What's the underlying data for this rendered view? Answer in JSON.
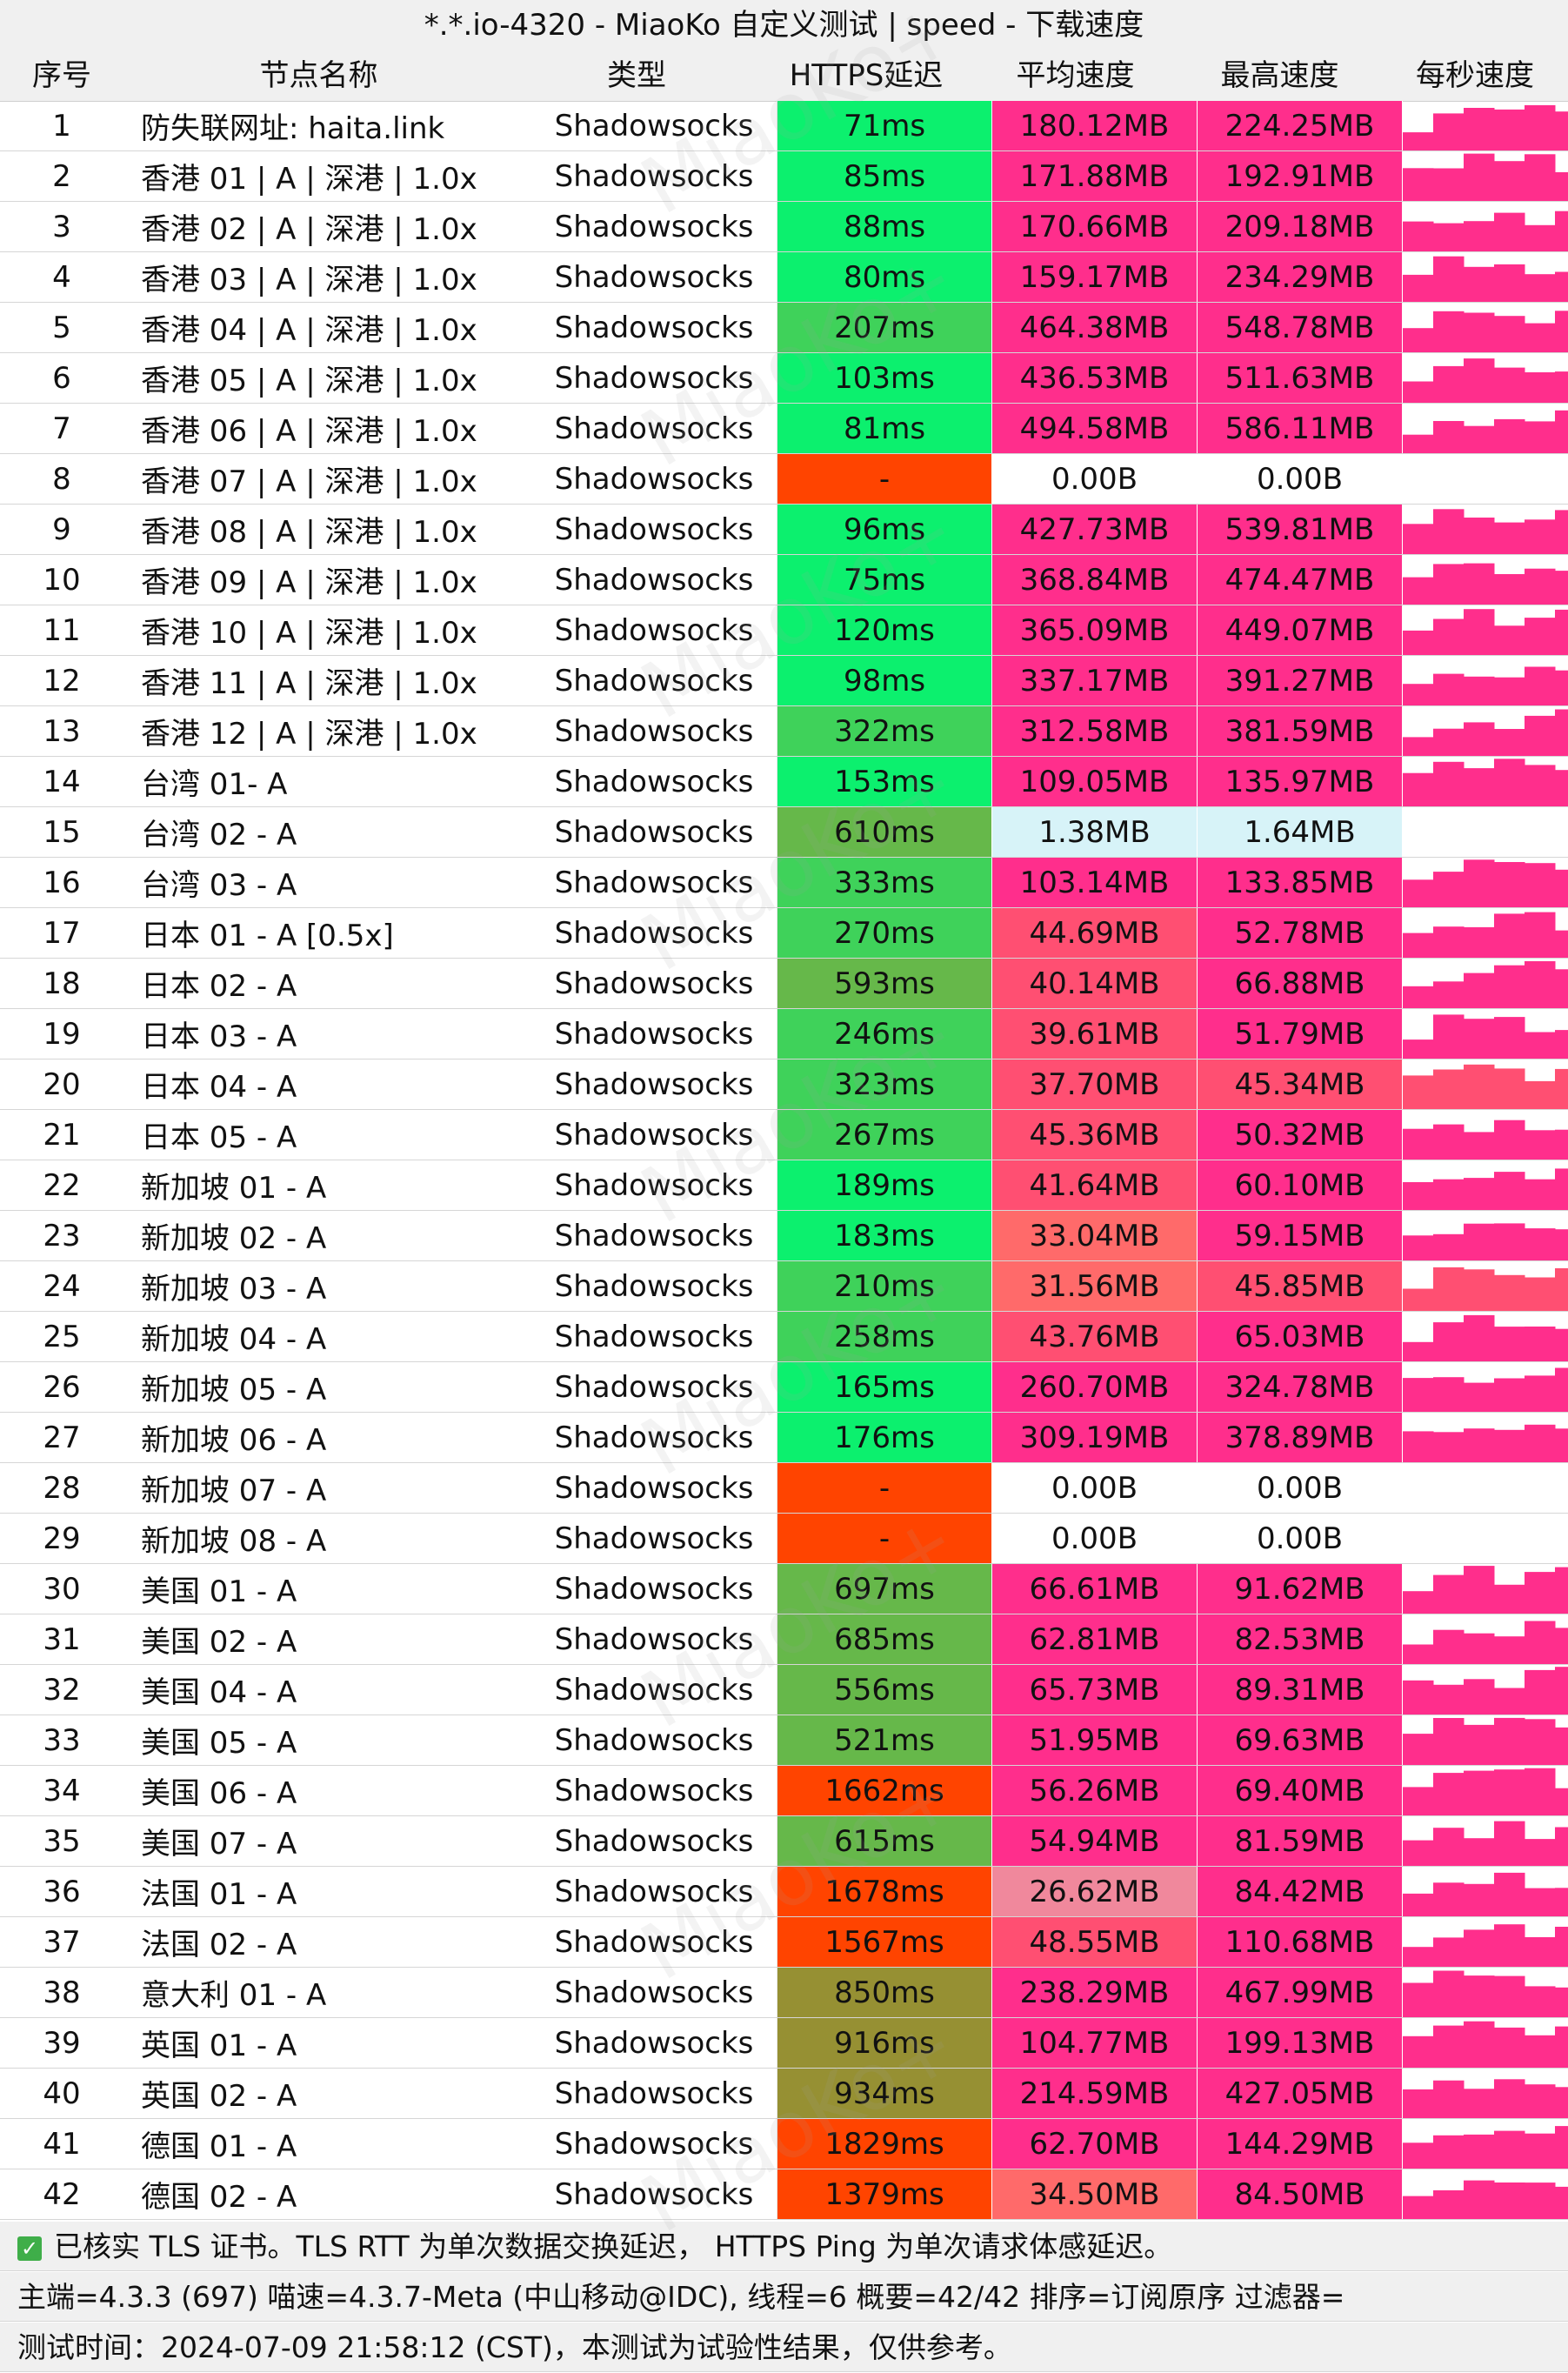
{
  "title": "*.*.io-4320 - MiaoKo 自定义测试 | speed - 下载速度",
  "watermark": "MiaoKo+",
  "columns": {
    "idx": "序号",
    "name": "节点名称",
    "type": "类型",
    "latency": "HTTPS延迟",
    "avg_speed": "平均速度",
    "max_speed": "最高速度",
    "per_second": "每秒速度"
  },
  "colors": {
    "latency_good": "#0cf06e",
    "latency_mid": "#3fd25a",
    "latency_slow": "#66b84a",
    "latency_olive": "#969033",
    "latency_fail": "#ff4400",
    "speed_high": "#ff2e8c",
    "speed_mid": "#ff4f72",
    "speed_low": "#ff6a6a",
    "speed_pale": "#f0889c",
    "speed_tiny": "#d7f3f8",
    "header_bg": "#f0f0f0"
  },
  "rows": [
    {
      "idx": "1",
      "name": "防失联网址: haita.link",
      "type": "Shadowsocks",
      "latency": "71ms",
      "avg": "180.12MB",
      "max": "224.25MB"
    },
    {
      "idx": "2",
      "name": "香港 01 | A | 深港 | 1.0x",
      "type": "Shadowsocks",
      "latency": "85ms",
      "avg": "171.88MB",
      "max": "192.91MB"
    },
    {
      "idx": "3",
      "name": "香港 02 | A | 深港 | 1.0x",
      "type": "Shadowsocks",
      "latency": "88ms",
      "avg": "170.66MB",
      "max": "209.18MB"
    },
    {
      "idx": "4",
      "name": "香港 03 | A | 深港 | 1.0x",
      "type": "Shadowsocks",
      "latency": "80ms",
      "avg": "159.17MB",
      "max": "234.29MB"
    },
    {
      "idx": "5",
      "name": "香港 04 | A | 深港 | 1.0x",
      "type": "Shadowsocks",
      "latency": "207ms",
      "avg": "464.38MB",
      "max": "548.78MB"
    },
    {
      "idx": "6",
      "name": "香港 05 | A | 深港 | 1.0x",
      "type": "Shadowsocks",
      "latency": "103ms",
      "avg": "436.53MB",
      "max": "511.63MB"
    },
    {
      "idx": "7",
      "name": "香港 06 | A | 深港 | 1.0x",
      "type": "Shadowsocks",
      "latency": "81ms",
      "avg": "494.58MB",
      "max": "586.11MB"
    },
    {
      "idx": "8",
      "name": "香港 07 | A | 深港 | 1.0x",
      "type": "Shadowsocks",
      "latency": "-",
      "avg": "0.00B",
      "max": "0.00B"
    },
    {
      "idx": "9",
      "name": "香港 08 | A | 深港 | 1.0x",
      "type": "Shadowsocks",
      "latency": "96ms",
      "avg": "427.73MB",
      "max": "539.81MB"
    },
    {
      "idx": "10",
      "name": "香港 09 | A | 深港 | 1.0x",
      "type": "Shadowsocks",
      "latency": "75ms",
      "avg": "368.84MB",
      "max": "474.47MB"
    },
    {
      "idx": "11",
      "name": "香港 10 | A | 深港 | 1.0x",
      "type": "Shadowsocks",
      "latency": "120ms",
      "avg": "365.09MB",
      "max": "449.07MB"
    },
    {
      "idx": "12",
      "name": "香港 11 | A | 深港 | 1.0x",
      "type": "Shadowsocks",
      "latency": "98ms",
      "avg": "337.17MB",
      "max": "391.27MB"
    },
    {
      "idx": "13",
      "name": "香港 12 | A | 深港 | 1.0x",
      "type": "Shadowsocks",
      "latency": "322ms",
      "avg": "312.58MB",
      "max": "381.59MB"
    },
    {
      "idx": "14",
      "name": "台湾 01- A",
      "type": "Shadowsocks",
      "latency": "153ms",
      "avg": "109.05MB",
      "max": "135.97MB"
    },
    {
      "idx": "15",
      "name": "台湾 02 - A",
      "type": "Shadowsocks",
      "latency": "610ms",
      "avg": "1.38MB",
      "max": "1.64MB"
    },
    {
      "idx": "16",
      "name": "台湾 03 - A",
      "type": "Shadowsocks",
      "latency": "333ms",
      "avg": "103.14MB",
      "max": "133.85MB"
    },
    {
      "idx": "17",
      "name": "日本 01 - A [0.5x]",
      "type": "Shadowsocks",
      "latency": "270ms",
      "avg": "44.69MB",
      "max": "52.78MB"
    },
    {
      "idx": "18",
      "name": "日本 02 - A",
      "type": "Shadowsocks",
      "latency": "593ms",
      "avg": "40.14MB",
      "max": "66.88MB"
    },
    {
      "idx": "19",
      "name": "日本 03 - A",
      "type": "Shadowsocks",
      "latency": "246ms",
      "avg": "39.61MB",
      "max": "51.79MB"
    },
    {
      "idx": "20",
      "name": "日本 04 - A",
      "type": "Shadowsocks",
      "latency": "323ms",
      "avg": "37.70MB",
      "max": "45.34MB"
    },
    {
      "idx": "21",
      "name": "日本 05 - A",
      "type": "Shadowsocks",
      "latency": "267ms",
      "avg": "45.36MB",
      "max": "50.32MB"
    },
    {
      "idx": "22",
      "name": "新加坡 01 - A",
      "type": "Shadowsocks",
      "latency": "189ms",
      "avg": "41.64MB",
      "max": "60.10MB"
    },
    {
      "idx": "23",
      "name": "新加坡 02 - A",
      "type": "Shadowsocks",
      "latency": "183ms",
      "avg": "33.04MB",
      "max": "59.15MB"
    },
    {
      "idx": "24",
      "name": "新加坡 03 - A",
      "type": "Shadowsocks",
      "latency": "210ms",
      "avg": "31.56MB",
      "max": "45.85MB"
    },
    {
      "idx": "25",
      "name": "新加坡 04 - A",
      "type": "Shadowsocks",
      "latency": "258ms",
      "avg": "43.76MB",
      "max": "65.03MB"
    },
    {
      "idx": "26",
      "name": "新加坡 05 - A",
      "type": "Shadowsocks",
      "latency": "165ms",
      "avg": "260.70MB",
      "max": "324.78MB"
    },
    {
      "idx": "27",
      "name": "新加坡 06 - A",
      "type": "Shadowsocks",
      "latency": "176ms",
      "avg": "309.19MB",
      "max": "378.89MB"
    },
    {
      "idx": "28",
      "name": "新加坡 07 - A",
      "type": "Shadowsocks",
      "latency": "-",
      "avg": "0.00B",
      "max": "0.00B"
    },
    {
      "idx": "29",
      "name": "新加坡 08 - A",
      "type": "Shadowsocks",
      "latency": "-",
      "avg": "0.00B",
      "max": "0.00B"
    },
    {
      "idx": "30",
      "name": "美国 01 - A",
      "type": "Shadowsocks",
      "latency": "697ms",
      "avg": "66.61MB",
      "max": "91.62MB"
    },
    {
      "idx": "31",
      "name": "美国 02 - A",
      "type": "Shadowsocks",
      "latency": "685ms",
      "avg": "62.81MB",
      "max": "82.53MB"
    },
    {
      "idx": "32",
      "name": "美国 04 - A",
      "type": "Shadowsocks",
      "latency": "556ms",
      "avg": "65.73MB",
      "max": "89.31MB"
    },
    {
      "idx": "33",
      "name": "美国 05 - A",
      "type": "Shadowsocks",
      "latency": "521ms",
      "avg": "51.95MB",
      "max": "69.63MB"
    },
    {
      "idx": "34",
      "name": "美国 06 - A",
      "type": "Shadowsocks",
      "latency": "1662ms",
      "avg": "56.26MB",
      "max": "69.40MB"
    },
    {
      "idx": "35",
      "name": "美国 07 - A",
      "type": "Shadowsocks",
      "latency": "615ms",
      "avg": "54.94MB",
      "max": "81.59MB"
    },
    {
      "idx": "36",
      "name": "法国 01 - A",
      "type": "Shadowsocks",
      "latency": "1678ms",
      "avg": "26.62MB",
      "max": "84.42MB"
    },
    {
      "idx": "37",
      "name": "法国 02 - A",
      "type": "Shadowsocks",
      "latency": "1567ms",
      "avg": "48.55MB",
      "max": "110.68MB"
    },
    {
      "idx": "38",
      "name": "意大利 01 - A",
      "type": "Shadowsocks",
      "latency": "850ms",
      "avg": "238.29MB",
      "max": "467.99MB"
    },
    {
      "idx": "39",
      "name": "英国 01 - A",
      "type": "Shadowsocks",
      "latency": "916ms",
      "avg": "104.77MB",
      "max": "199.13MB"
    },
    {
      "idx": "40",
      "name": "英国 02 - A",
      "type": "Shadowsocks",
      "latency": "934ms",
      "avg": "214.59MB",
      "max": "427.05MB"
    },
    {
      "idx": "41",
      "name": "德国 01 - A",
      "type": "Shadowsocks",
      "latency": "1829ms",
      "avg": "62.70MB",
      "max": "144.29MB"
    },
    {
      "idx": "42",
      "name": "德国 02 - A",
      "type": "Shadowsocks",
      "latency": "1379ms",
      "avg": "34.50MB",
      "max": "84.50MB"
    }
  ],
  "footer": {
    "line1": "已核实 TLS 证书。TLS RTT 为单次数据交换延迟， HTTPS Ping 为单次请求体感延迟。",
    "line2": "主端=4.3.3 (697) 喵速=4.3.7-Meta (中山移动@IDC), 线程=6 概要=42/42 排序=订阅原序 过滤器=",
    "line3": "测试时间：2024-07-09 21:58:12 (CST)，本测试为试验性结果，仅供参考。"
  }
}
